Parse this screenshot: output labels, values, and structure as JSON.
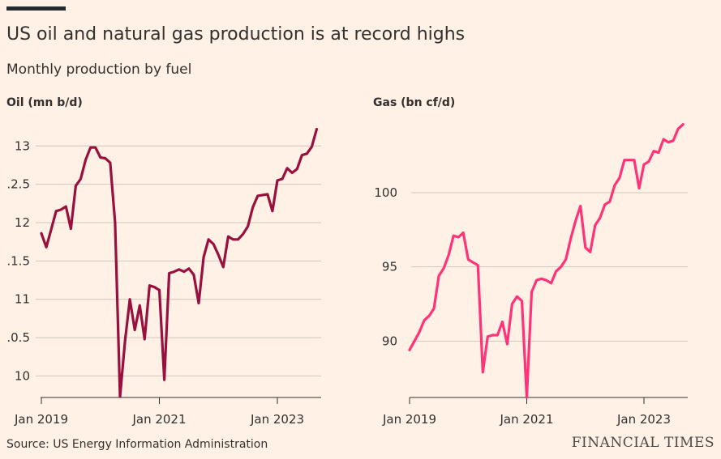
{
  "header": {
    "title": "US oil and natural gas production is at record highs",
    "subtitle": "Monthly production by fuel"
  },
  "footer": {
    "source": "Source: US Energy Information Administration",
    "brand": "FINANCIAL TIMES"
  },
  "chart_data": [
    {
      "type": "line",
      "title": "Oil (mn b/d)",
      "color": "#990F3D",
      "x_ticks": [
        "Jan 2019",
        "Jan 2021",
        "Jan 2023"
      ],
      "y_ticks": [
        "13",
        ".2.5",
        "12",
        ".1.5",
        "11",
        ".0.5",
        "10"
      ],
      "ylim": [
        9.73,
        13.32
      ],
      "xlim": [
        "2019-01",
        "2023-12"
      ],
      "x": [
        "2019-01",
        "2019-02",
        "2019-03",
        "2019-04",
        "2019-05",
        "2019-06",
        "2019-07",
        "2019-08",
        "2019-09",
        "2019-10",
        "2019-11",
        "2019-12",
        "2020-01",
        "2020-02",
        "2020-03",
        "2020-04",
        "2020-05",
        "2020-06",
        "2020-07",
        "2020-08",
        "2020-09",
        "2020-10",
        "2020-11",
        "2020-12",
        "2021-01",
        "2021-02",
        "2021-03",
        "2021-04",
        "2021-05",
        "2021-06",
        "2021-07",
        "2021-08",
        "2021-09",
        "2021-10",
        "2021-11",
        "2021-12",
        "2022-01",
        "2022-02",
        "2022-03",
        "2022-04",
        "2022-05",
        "2022-06",
        "2022-07",
        "2022-08",
        "2022-09",
        "2022-10",
        "2022-11",
        "2022-12",
        "2023-01",
        "2023-02",
        "2023-03",
        "2023-04",
        "2023-05",
        "2023-06",
        "2023-07",
        "2023-08",
        "2023-09"
      ],
      "values": [
        11.86,
        11.68,
        11.91,
        12.15,
        12.17,
        12.21,
        11.92,
        12.48,
        12.57,
        12.82,
        12.98,
        12.98,
        12.85,
        12.84,
        12.78,
        12.0,
        9.73,
        10.45,
        11.0,
        10.6,
        10.92,
        10.48,
        11.18,
        11.16,
        11.12,
        9.95,
        11.34,
        11.36,
        11.39,
        11.36,
        11.4,
        11.32,
        10.95,
        11.55,
        11.78,
        11.72,
        11.58,
        11.42,
        11.82,
        11.78,
        11.78,
        11.85,
        11.95,
        12.2,
        12.35,
        12.36,
        12.37,
        12.15,
        12.55,
        12.57,
        12.71,
        12.65,
        12.7,
        12.88,
        12.9,
        12.99,
        13.22
      ]
    },
    {
      "type": "line",
      "title": "Gas (bn cf/d)",
      "color": "#FF3377",
      "x_ticks": [
        "Jan 2019",
        "Jan 2021",
        "Jan 2023"
      ],
      "y_ticks": [
        "100",
        "95",
        "90"
      ],
      "ylim": [
        86.2,
        104.8
      ],
      "xlim": [
        "2019-01",
        "2023-12"
      ],
      "x": [
        "2019-01",
        "2019-02",
        "2019-03",
        "2019-04",
        "2019-05",
        "2019-06",
        "2019-07",
        "2019-08",
        "2019-09",
        "2019-10",
        "2019-11",
        "2019-12",
        "2020-01",
        "2020-02",
        "2020-03",
        "2020-04",
        "2020-05",
        "2020-06",
        "2020-07",
        "2020-08",
        "2020-09",
        "2020-10",
        "2020-11",
        "2020-12",
        "2021-01",
        "2021-02",
        "2021-03",
        "2021-04",
        "2021-05",
        "2021-06",
        "2021-07",
        "2021-08",
        "2021-09",
        "2021-10",
        "2021-11",
        "2021-12",
        "2022-01",
        "2022-02",
        "2022-03",
        "2022-04",
        "2022-05",
        "2022-06",
        "2022-07",
        "2022-08",
        "2022-09",
        "2022-10",
        "2022-11",
        "2022-12",
        "2023-01",
        "2023-02",
        "2023-03",
        "2023-04",
        "2023-05",
        "2023-06",
        "2023-07",
        "2023-08",
        "2023-09"
      ],
      "values": [
        89.4,
        90.0,
        90.6,
        91.4,
        91.7,
        92.2,
        94.4,
        94.9,
        95.8,
        97.1,
        97.0,
        97.3,
        95.5,
        95.3,
        95.1,
        87.9,
        90.3,
        90.4,
        90.4,
        91.3,
        89.8,
        92.5,
        93.0,
        92.7,
        86.2,
        93.3,
        94.1,
        94.2,
        94.1,
        93.9,
        94.7,
        95.0,
        95.5,
        96.9,
        98.1,
        99.1,
        96.3,
        96.0,
        97.8,
        98.3,
        99.2,
        99.4,
        100.5,
        101.0,
        102.2,
        102.2,
        102.2,
        100.3,
        101.9,
        102.1,
        102.8,
        102.7,
        103.6,
        103.4,
        103.5,
        104.3,
        104.6
      ]
    }
  ]
}
